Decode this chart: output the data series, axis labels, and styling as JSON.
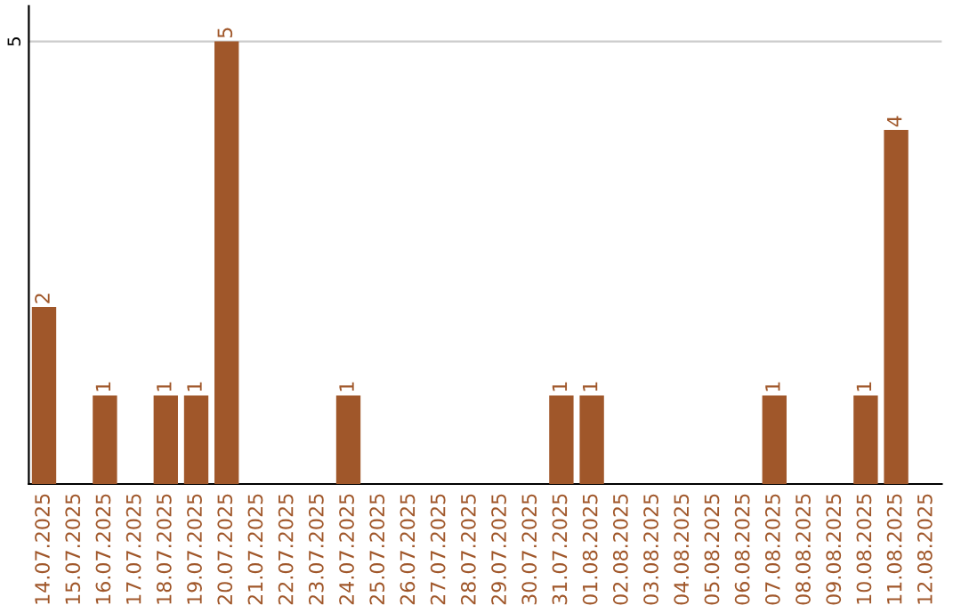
{
  "chart_data": {
    "type": "bar",
    "categories": [
      "14.07.2025",
      "15.07.2025",
      "16.07.2025",
      "17.07.2025",
      "18.07.2025",
      "19.07.2025",
      "20.07.2025",
      "21.07.2025",
      "22.07.2025",
      "23.07.2025",
      "24.07.2025",
      "25.07.2025",
      "26.07.2025",
      "27.07.2025",
      "28.07.2025",
      "29.07.2025",
      "30.07.2025",
      "31.07.2025",
      "01.08.2025",
      "02.08.2025",
      "03.08.2025",
      "04.08.2025",
      "05.08.2025",
      "06.08.2025",
      "07.08.2025",
      "08.08.2025",
      "09.08.2025",
      "10.08.2025",
      "11.08.2025",
      "12.08.2025"
    ],
    "values": [
      2,
      0,
      1,
      0,
      1,
      1,
      5,
      0,
      0,
      0,
      1,
      0,
      0,
      0,
      0,
      0,
      0,
      1,
      1,
      0,
      0,
      0,
      0,
      0,
      1,
      0,
      0,
      1,
      4,
      0
    ],
    "value_labels": [
      "2",
      null,
      "1",
      null,
      "1",
      "1",
      "5",
      null,
      null,
      null,
      "1",
      null,
      null,
      null,
      null,
      null,
      null,
      "1",
      "1",
      null,
      null,
      null,
      null,
      null,
      "1",
      null,
      null,
      "1",
      "4",
      null
    ],
    "color": "#a0572a",
    "ylim": [
      0,
      5.4
    ],
    "yticks": [
      5
    ],
    "grid": "y"
  }
}
